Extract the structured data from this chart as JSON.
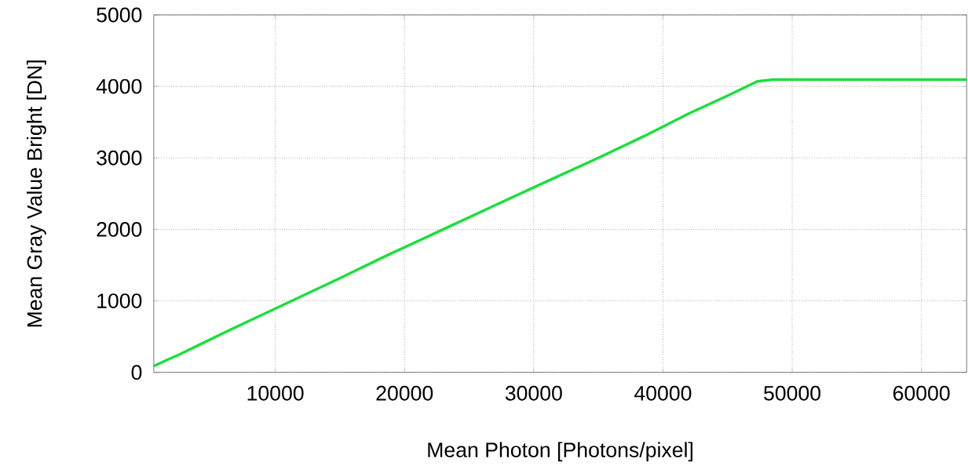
{
  "chart_data": {
    "type": "line",
    "xlabel": "Mean Photon [Photons/pixel]",
    "ylabel": "Mean Gray Value Bright [DN]",
    "x": [
      600,
      1500,
      2600,
      6600,
      10800,
      14800,
      18800,
      23000,
      26800,
      31000,
      35000,
      38500,
      42000,
      45000,
      47300,
      48500,
      50000,
      54000,
      60000,
      63500
    ],
    "series": [
      {
        "color": "#19e03c",
        "values": [
          88,
          164,
          252,
          603,
          960,
          1300,
          1650,
          2000,
          2320,
          2670,
          3000,
          3300,
          3620,
          3870,
          4070,
          4095,
          4095,
          4095,
          4095,
          4095
        ]
      }
    ],
    "xlim": [
      600,
      63500
    ],
    "ylim": [
      0,
      5000
    ],
    "xticks": [
      10000,
      20000,
      30000,
      40000,
      50000,
      60000
    ],
    "yticks": [
      0,
      1000,
      2000,
      3000,
      4000,
      5000
    ],
    "grid": true,
    "marker": "none",
    "line_style": "solid"
  }
}
